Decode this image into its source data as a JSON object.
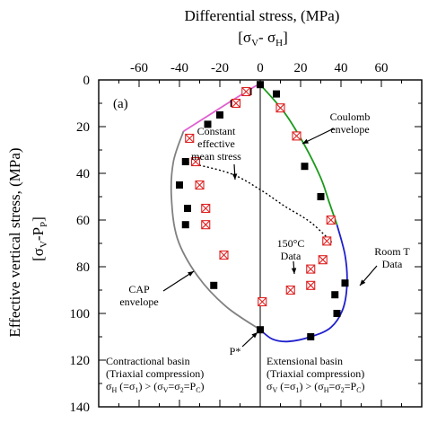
{
  "chart_data": {
    "type": "scatter",
    "panel_label": "(a)",
    "x_axis": {
      "title": "Differential stress,   (MPa)",
      "formula": {
        "open": "[",
        "s1": "σ",
        "sub1": "V",
        "mid": "- ",
        "s2": "σ",
        "sub2": "H",
        "close": "]"
      },
      "position": "top",
      "range": [
        -80,
        80
      ],
      "ticks": [
        -60,
        -40,
        -20,
        0,
        20,
        40,
        60
      ]
    },
    "y_axis": {
      "title": "Effective vertical stress,   (MPa)",
      "formula": {
        "open": "[",
        "s1": "σ",
        "sub1": "V",
        "mid": "-P",
        "sub2": "P",
        "close": "]"
      },
      "range": [
        0,
        140
      ],
      "inverted": true,
      "ticks": [
        0,
        20,
        40,
        60,
        80,
        100,
        120,
        140
      ]
    },
    "series": [
      {
        "name": "Room T Data",
        "marker": "filled-square",
        "color": "#000000",
        "points": [
          {
            "x": 0,
            "y": 2
          },
          {
            "x": -6,
            "y": 5
          },
          {
            "x": -13,
            "y": 10
          },
          {
            "x": -20,
            "y": 15
          },
          {
            "x": -26,
            "y": 19
          },
          {
            "x": -35,
            "y": 25
          },
          {
            "x": -37,
            "y": 35
          },
          {
            "x": -40,
            "y": 45
          },
          {
            "x": -36,
            "y": 55
          },
          {
            "x": -37,
            "y": 62
          },
          {
            "x": -23,
            "y": 88
          },
          {
            "x": 8,
            "y": 6
          },
          {
            "x": 22,
            "y": 37
          },
          {
            "x": 30,
            "y": 50
          },
          {
            "x": 37,
            "y": 92
          },
          {
            "x": 38,
            "y": 100
          },
          {
            "x": 25,
            "y": 110
          },
          {
            "x": 0,
            "y": 107
          },
          {
            "x": 42,
            "y": 87
          }
        ]
      },
      {
        "name": "150°C Data",
        "marker": "boxed-x",
        "color": "#dd2222",
        "points": [
          {
            "x": -7,
            "y": 5
          },
          {
            "x": -12,
            "y": 10
          },
          {
            "x": -35,
            "y": 25
          },
          {
            "x": -32,
            "y": 35
          },
          {
            "x": -30,
            "y": 45
          },
          {
            "x": -27,
            "y": 55
          },
          {
            "x": -27,
            "y": 62
          },
          {
            "x": -18,
            "y": 75
          },
          {
            "x": 10,
            "y": 12
          },
          {
            "x": 18,
            "y": 24
          },
          {
            "x": 35,
            "y": 60
          },
          {
            "x": 33,
            "y": 69
          },
          {
            "x": 31,
            "y": 77
          },
          {
            "x": 25,
            "y": 81
          },
          {
            "x": 25,
            "y": 88
          },
          {
            "x": 15,
            "y": 90
          },
          {
            "x": 1,
            "y": 95
          }
        ]
      }
    ],
    "curves": [
      {
        "name": "CAP envelope",
        "color": "#808080",
        "points": [
          [
            -38,
            22
          ],
          [
            -43,
            35
          ],
          [
            -44,
            50
          ],
          [
            -41,
            68
          ],
          [
            -31,
            84
          ],
          [
            -17,
            97
          ],
          [
            0,
            107
          ]
        ]
      },
      {
        "name": "Coulomb envelope",
        "color": "#1a9a1a",
        "points": [
          [
            0,
            2
          ],
          [
            12,
            14
          ],
          [
            22,
            28
          ],
          [
            30,
            42
          ],
          [
            34,
            52
          ],
          [
            38,
            62
          ]
        ]
      },
      {
        "name": "cap-blue",
        "color": "#1f1fcc",
        "points": [
          [
            38,
            62
          ],
          [
            42,
            75
          ],
          [
            43,
            87
          ],
          [
            41,
            98
          ],
          [
            35,
            106
          ],
          [
            25,
            110
          ],
          [
            14,
            112
          ],
          [
            6,
            111
          ],
          [
            0,
            107
          ]
        ]
      },
      {
        "name": "pink-segment",
        "color": "#e060d0",
        "points": [
          [
            -38,
            22
          ],
          [
            -5,
            4
          ],
          [
            0,
            2
          ]
        ]
      },
      {
        "name": "Constant effective mean stress",
        "color": "#000000",
        "dashed": true,
        "points": [
          [
            -38,
            35
          ],
          [
            -15,
            40
          ],
          [
            0,
            47
          ],
          [
            12,
            54
          ],
          [
            25,
            61
          ],
          [
            36,
            70
          ]
        ]
      }
    ],
    "annotations": {
      "constant_mean": [
        "Constant",
        "effective",
        "mean stress"
      ],
      "coulomb": [
        "Coulomb",
        "envelope"
      ],
      "cap": [
        "CAP",
        "envelope"
      ],
      "data150": [
        "150°C",
        "Data"
      ],
      "roomt": [
        "Room T",
        "Data"
      ],
      "pstar": "P*",
      "contractional": {
        "title": "Contractional basin",
        "sub": "(Triaxial compression)",
        "relation": {
          "s1": "σ",
          "sub1": "H",
          "t1": " (=σ",
          "sub2": "1",
          "t2": ") > (σ",
          "sub3": "V",
          "t3": "=σ",
          "sub4": "2",
          "t4": "=P",
          "sub5": "C",
          "t5": ")"
        }
      },
      "extensional": {
        "title": "Extensional basin",
        "sub": "(Triaxial compression)",
        "relation": {
          "s1": "σ",
          "sub1": "V",
          "t1": " (=σ",
          "sub2": "1",
          "t2": ") > (σ",
          "sub3": "H",
          "t3": "=σ",
          "sub4": "2",
          "t4": "=P",
          "sub5": "C",
          "t5": ")"
        }
      }
    }
  }
}
